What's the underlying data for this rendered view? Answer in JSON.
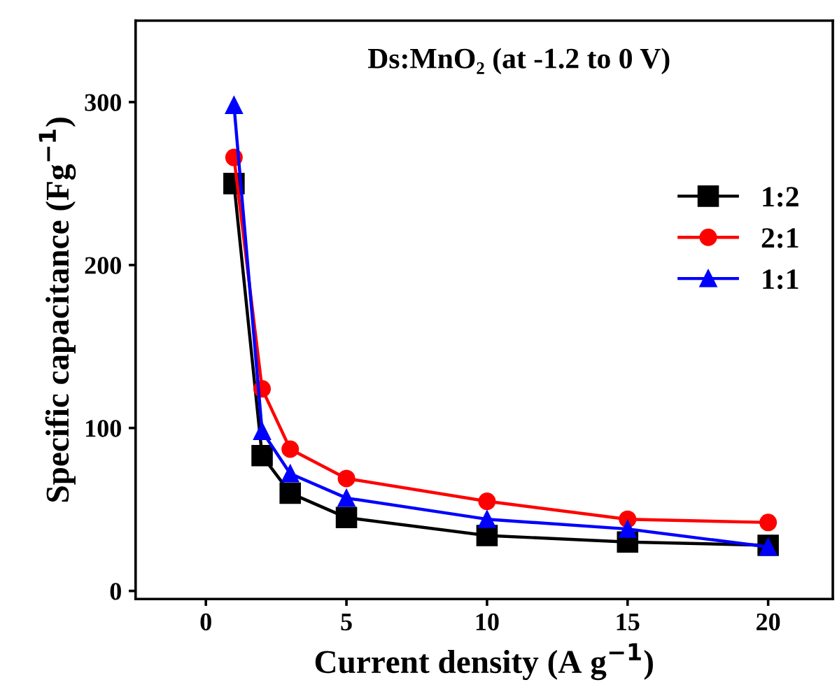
{
  "chart_data": {
    "type": "line",
    "xlabel": "Current density (A g$^{−1}$)",
    "ylabel": "Specific capacitance (Fg$^{−1}$)",
    "annotations": [
      "Ds:MnO₂ (at -1.2 to 0 V)"
    ],
    "x": [
      1,
      2,
      3,
      5,
      10,
      15,
      20
    ],
    "series": [
      {
        "name": "1:2",
        "color": "#000000",
        "marker": "square",
        "values": [
          250,
          83,
          60,
          45,
          34,
          30,
          28
        ]
      },
      {
        "name": "2:1",
        "color": "#ff0000",
        "marker": "circle",
        "values": [
          266,
          124,
          87,
          69,
          55,
          44,
          42
        ]
      },
      {
        "name": "1:1",
        "color": "#0000ff",
        "marker": "triangle",
        "values": [
          298,
          98,
          72,
          57,
          44,
          38,
          27
        ]
      }
    ],
    "xlim": [
      -2.5,
      22.3
    ],
    "xticks": [
      0,
      5,
      10,
      15,
      20
    ],
    "ylim": [
      -5,
      350
    ],
    "yticks": [
      0,
      100,
      200,
      300
    ],
    "grid": false,
    "legend": "right",
    "line_style": "solid"
  }
}
